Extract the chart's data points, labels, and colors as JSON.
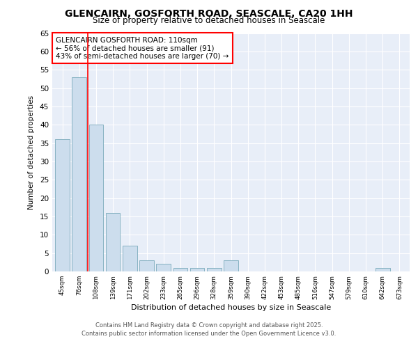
{
  "title1": "GLENCAIRN, GOSFORTH ROAD, SEASCALE, CA20 1HH",
  "title2": "Size of property relative to detached houses in Seascale",
  "xlabel": "Distribution of detached houses by size in Seascale",
  "ylabel": "Number of detached properties",
  "categories": [
    "45sqm",
    "76sqm",
    "108sqm",
    "139sqm",
    "171sqm",
    "202sqm",
    "233sqm",
    "265sqm",
    "296sqm",
    "328sqm",
    "359sqm",
    "390sqm",
    "422sqm",
    "453sqm",
    "485sqm",
    "516sqm",
    "547sqm",
    "579sqm",
    "610sqm",
    "642sqm",
    "673sqm"
  ],
  "values": [
    36,
    53,
    40,
    16,
    7,
    3,
    2,
    1,
    1,
    1,
    3,
    0,
    0,
    0,
    0,
    0,
    0,
    0,
    0,
    1,
    0
  ],
  "bar_color": "#ccdded",
  "bar_edge_color": "#7aaabb",
  "red_line_index": 2,
  "annotation_title": "GLENCAIRN GOSFORTH ROAD: 110sqm",
  "annotation_line1": "← 56% of detached houses are smaller (91)",
  "annotation_line2": "43% of semi-detached houses are larger (70) →",
  "ylim": [
    0,
    65
  ],
  "yticks": [
    0,
    5,
    10,
    15,
    20,
    25,
    30,
    35,
    40,
    45,
    50,
    55,
    60,
    65
  ],
  "footer1": "Contains HM Land Registry data © Crown copyright and database right 2025.",
  "footer2": "Contains public sector information licensed under the Open Government Licence v3.0.",
  "fig_bg_color": "#ffffff",
  "plot_bg_color": "#e8eef8"
}
